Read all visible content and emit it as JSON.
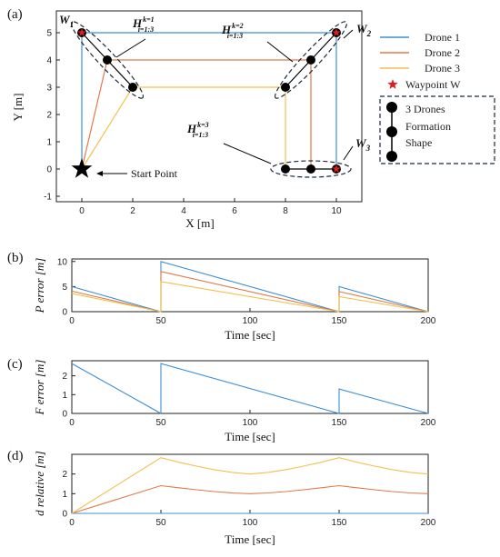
{
  "colors": {
    "drone1": "#3d8fd6",
    "drone2": "#e07a4a",
    "drone3": "#f2c14e",
    "waypoint": "#e01b1b",
    "axis": "#222222"
  },
  "chart_data": [
    {
      "panel": "(a)",
      "type": "scatter",
      "xlabel": "X [m]",
      "ylabel": "Y [m]",
      "xlim": [
        -1,
        11
      ],
      "ylim": [
        -1.2,
        5.8
      ],
      "xticks": [
        0,
        2,
        4,
        6,
        8,
        10
      ],
      "yticks": [
        -1,
        0,
        1,
        2,
        3,
        4,
        5
      ],
      "series": [
        {
          "name": "Drone 1",
          "x": [
            0,
            0,
            10,
            10
          ],
          "y": [
            0,
            5,
            5,
            0
          ]
        },
        {
          "name": "Drone 2",
          "x": [
            0,
            1,
            9,
            9
          ],
          "y": [
            0,
            4,
            4,
            0
          ]
        },
        {
          "name": "Drone 3",
          "x": [
            0,
            2,
            8,
            8
          ],
          "y": [
            0,
            3,
            3,
            0
          ]
        }
      ],
      "waypoints": [
        {
          "label": "W1",
          "x": 0,
          "y": 5
        },
        {
          "label": "W2",
          "x": 10,
          "y": 5
        },
        {
          "label": "W3",
          "x": 10,
          "y": 0
        }
      ],
      "formations": [
        {
          "label": "H k=1 i=1:3",
          "points": [
            [
              0,
              5
            ],
            [
              1,
              4
            ],
            [
              2,
              3
            ]
          ]
        },
        {
          "label": "H k=2 i=1:3",
          "points": [
            [
              10,
              5
            ],
            [
              9,
              4
            ],
            [
              8,
              3
            ]
          ]
        },
        {
          "label": "H k=3 i=1:3",
          "points": [
            [
              8,
              0
            ],
            [
              9,
              0
            ],
            [
              10,
              0
            ]
          ]
        }
      ],
      "start_point": {
        "x": 0,
        "y": 0,
        "label": "Start Point"
      },
      "legend": [
        "Drone 1",
        "Drone 2",
        "Drone 3",
        "Waypoint W"
      ],
      "legend_box": "3 Drones Formation Shape",
      "legend_placement": "right"
    },
    {
      "panel": "(b)",
      "type": "line",
      "xlabel": "Time [sec]",
      "ylabel": "P error [m]",
      "xlim": [
        0,
        200
      ],
      "ylim": [
        0,
        10.5
      ],
      "xticks": [
        0,
        50,
        100,
        150,
        200
      ],
      "yticks": [
        0,
        5,
        10
      ],
      "series": [
        {
          "name": "Drone 1",
          "x": [
            0,
            50,
            50,
            150,
            150,
            200
          ],
          "y": [
            5,
            0,
            10,
            0,
            5,
            0
          ]
        },
        {
          "name": "Drone 2",
          "x": [
            0,
            50,
            50,
            150,
            150,
            200
          ],
          "y": [
            4.1,
            0,
            8,
            0,
            4,
            0
          ]
        },
        {
          "name": "Drone 3",
          "x": [
            0,
            50,
            50,
            150,
            150,
            200
          ],
          "y": [
            3.6,
            0,
            6,
            0,
            3,
            0
          ]
        }
      ]
    },
    {
      "panel": "(c)",
      "type": "line",
      "xlabel": "Time [sec]",
      "ylabel": "F error [m]",
      "xlim": [
        0,
        200
      ],
      "ylim": [
        0,
        2.8
      ],
      "xticks": [
        0,
        50,
        100,
        150,
        200
      ],
      "yticks": [
        0,
        1,
        2
      ],
      "series": [
        {
          "name": "Drone 1",
          "x": [
            0,
            50,
            50,
            150,
            150,
            200
          ],
          "y": [
            2.65,
            0,
            2.65,
            0,
            1.3,
            0
          ]
        }
      ]
    },
    {
      "panel": "(d)",
      "type": "line",
      "xlabel": "Time [sec]",
      "ylabel": "d relative [m]",
      "xlim": [
        0,
        200
      ],
      "ylim": [
        0,
        3
      ],
      "xticks": [
        0,
        50,
        100,
        150,
        200
      ],
      "yticks": [
        0,
        1,
        2
      ],
      "series": [
        {
          "name": "Drone 1",
          "x": [
            0,
            200
          ],
          "y": [
            0,
            0
          ]
        },
        {
          "name": "Drone 2",
          "x": [
            0,
            50,
            60,
            70,
            80,
            90,
            100,
            110,
            120,
            130,
            140,
            150,
            160,
            170,
            180,
            190,
            200
          ],
          "y": [
            0,
            1.41,
            1.3,
            1.2,
            1.11,
            1.04,
            1.0,
            1.04,
            1.11,
            1.2,
            1.3,
            1.41,
            1.3,
            1.2,
            1.11,
            1.04,
            1.0
          ]
        },
        {
          "name": "Drone 3",
          "x": [
            0,
            50,
            60,
            70,
            80,
            90,
            100,
            110,
            120,
            130,
            140,
            150,
            160,
            170,
            180,
            190,
            200
          ],
          "y": [
            0,
            2.83,
            2.6,
            2.4,
            2.22,
            2.08,
            2.0,
            2.08,
            2.22,
            2.4,
            2.6,
            2.83,
            2.6,
            2.4,
            2.22,
            2.08,
            2.0
          ]
        }
      ]
    }
  ],
  "texts": {
    "panel_a": "(a)",
    "panel_b": "(b)",
    "panel_c": "(c)",
    "panel_d": "(d)",
    "x_label_a": "X [m]",
    "y_label_a": "Y [m]",
    "time_label": "Time [sec]",
    "p_error": "P error [m]",
    "f_error": "F error [m]",
    "d_relative": "d relative [m]",
    "legend_1": "Drone 1",
    "legend_2": "Drone 2",
    "legend_3": "Drone 3",
    "legend_wp": "Waypoint W",
    "formation_line1": "3 Drones",
    "formation_line2": "Formation",
    "formation_line3": "Shape",
    "start_point": "Start Point",
    "w1": "W",
    "w2": "W",
    "w3": "W",
    "w1_sub": "1",
    "w2_sub": "2",
    "w3_sub": "3",
    "h": "H",
    "h_sub": "i=1:3",
    "h1_sup": "k=1",
    "h2_sup": "k=2",
    "h3_sup": "k=3"
  }
}
